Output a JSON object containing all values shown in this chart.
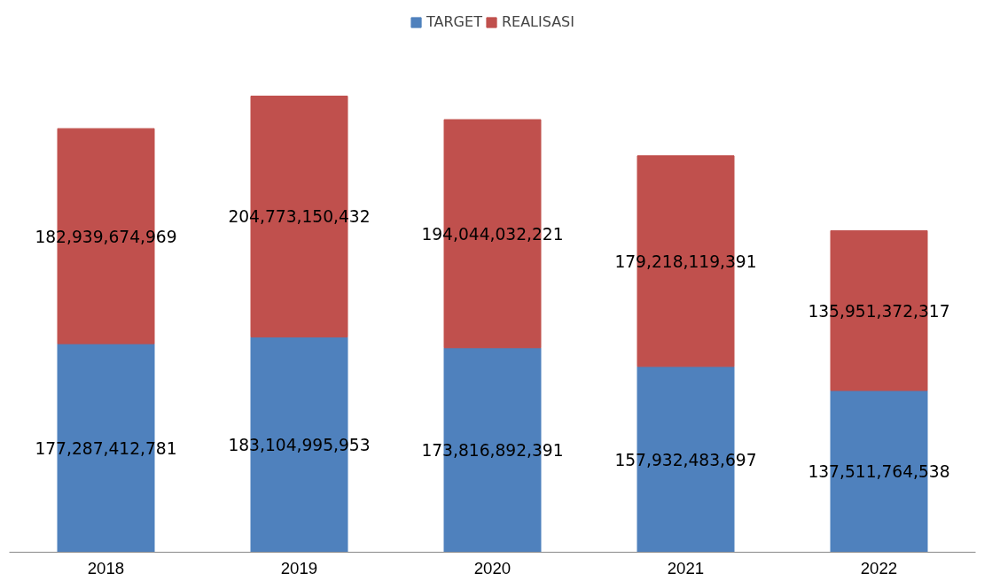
{
  "chart_data": {
    "type": "bar",
    "stacked": true,
    "categories": [
      "2018",
      "2019",
      "2020",
      "2021",
      "2022"
    ],
    "series": [
      {
        "name": "TARGET",
        "color": "#4f81bd",
        "values": [
          177287412781,
          183104995953,
          173816892391,
          157932483697,
          137511764538
        ],
        "value_labels": [
          "177,287,412,781",
          "183,104,995,953",
          "173,816,892,391",
          "157,932,483,697",
          "137,511,764,538"
        ]
      },
      {
        "name": "REALISASI",
        "color": "#c0504d",
        "values": [
          182939674969,
          204773150432,
          194044032221,
          179218119391,
          135951372317
        ],
        "value_labels": [
          "182,939,674,969",
          "204,773,150,432",
          "194,044,032,221",
          "179,218,119,391",
          "135,951,372,317"
        ]
      }
    ],
    "legend": "top",
    "grid": false,
    "tick_labels": "x"
  }
}
